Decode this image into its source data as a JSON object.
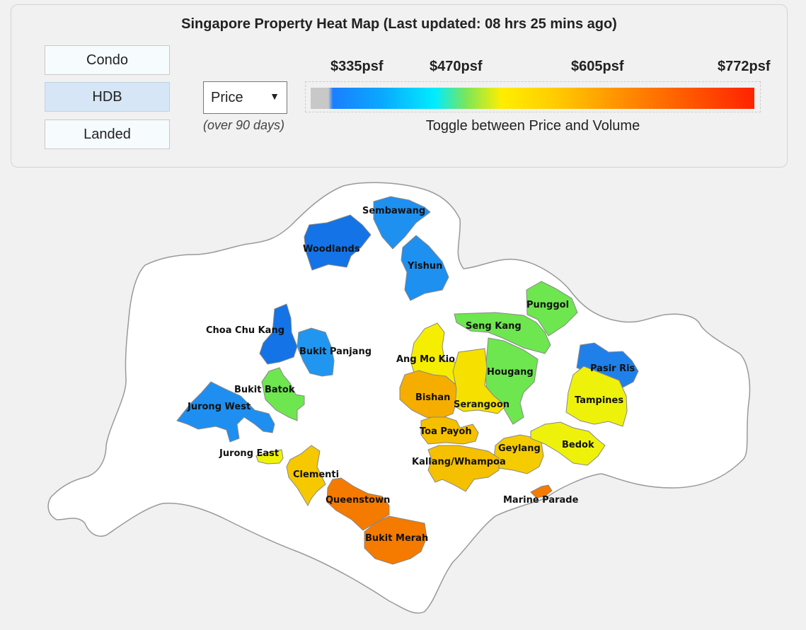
{
  "title": "Singapore Property Heat Map (Last updated: 08 hrs 25 mins ago)",
  "property_types": [
    {
      "label": "Condo",
      "active": false
    },
    {
      "label": "HDB",
      "active": true
    },
    {
      "label": "Landed",
      "active": false
    }
  ],
  "metric_select": {
    "value": "Price",
    "subtitle": "(over 90 days)"
  },
  "scale": {
    "labels": [
      "$335psf",
      "$470psf",
      "$605psf",
      "$772psf"
    ],
    "note": "Toggle between Price and Volume"
  },
  "districts": [
    {
      "name": "Sembawang",
      "color": "#1e90f0"
    },
    {
      "name": "Woodlands",
      "color": "#1473e6"
    },
    {
      "name": "Yishun",
      "color": "#1e90f0"
    },
    {
      "name": "Punggol",
      "color": "#6ee650"
    },
    {
      "name": "Seng Kang",
      "color": "#6ee650"
    },
    {
      "name": "Choa Chu Kang",
      "color": "#1473e6"
    },
    {
      "name": "Bukit Panjang",
      "color": "#2096f0"
    },
    {
      "name": "Ang Mo Kio",
      "color": "#f5ee00"
    },
    {
      "name": "Hougang",
      "color": "#6ee650"
    },
    {
      "name": "Pasir Ris",
      "color": "#1f80ea"
    },
    {
      "name": "Bukit Batok",
      "color": "#6ee650"
    },
    {
      "name": "Jurong West",
      "color": "#1e8ff0"
    },
    {
      "name": "Bishan",
      "color": "#f5ad00"
    },
    {
      "name": "Serangoon",
      "color": "#f5e000"
    },
    {
      "name": "Tampines",
      "color": "#eef20a"
    },
    {
      "name": "Toa Payoh",
      "color": "#f5c000"
    },
    {
      "name": "Jurong East",
      "color": "#eef20a"
    },
    {
      "name": "Clementi",
      "color": "#f5c800"
    },
    {
      "name": "Geylang",
      "color": "#f5cc00"
    },
    {
      "name": "Bedok",
      "color": "#eef20a"
    },
    {
      "name": "Kallang/Whampoa",
      "color": "#f5c000"
    },
    {
      "name": "Queenstown",
      "color": "#f57a00"
    },
    {
      "name": "Marine Parade",
      "color": "#f57a00"
    },
    {
      "name": "Bukit Merah",
      "color": "#f57a00"
    }
  ]
}
